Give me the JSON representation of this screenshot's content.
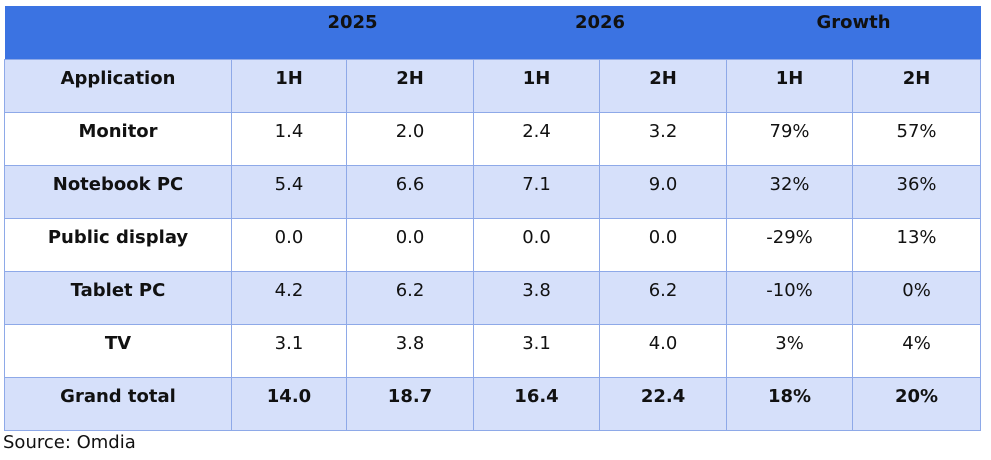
{
  "table": {
    "groups": [
      "2025",
      "2026",
      "Growth"
    ],
    "columns": [
      "Application",
      "1H",
      "2H",
      "1H",
      "2H",
      "1H",
      "2H"
    ],
    "rows": [
      [
        "Monitor",
        "1.4",
        "2.0",
        "2.4",
        "3.2",
        "79%",
        "57%"
      ],
      [
        "Notebook PC",
        "5.4",
        "6.6",
        "7.1",
        "9.0",
        "32%",
        "36%"
      ],
      [
        "Public display",
        "0.0",
        "0.0",
        "0.0",
        "0.0",
        "-29%",
        "13%"
      ],
      [
        "Tablet PC",
        "4.2",
        "6.2",
        "3.8",
        "6.2",
        "-10%",
        "0%"
      ],
      [
        "TV",
        "3.1",
        "3.8",
        "3.1",
        "4.0",
        "3%",
        "4%"
      ]
    ],
    "total": [
      "Grand total",
      "14.0",
      "18.7",
      "16.4",
      "22.4",
      "18%",
      "20%"
    ]
  },
  "source": "Source: Omdia",
  "colors": {
    "header_band": "#3b73e2",
    "shaded_row": "#d6e0fa",
    "border": "#8ea9e8"
  }
}
